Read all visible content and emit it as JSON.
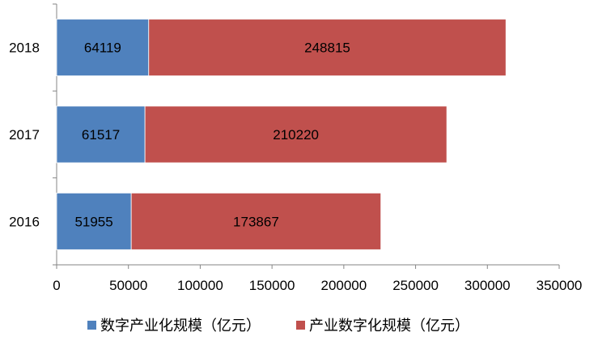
{
  "chart_data": {
    "type": "bar",
    "orientation": "horizontal",
    "stacked": true,
    "categories": [
      "2016",
      "2017",
      "2018"
    ],
    "series": [
      {
        "name": "数字产业化规模（亿元）",
        "values": [
          51955,
          61517,
          64119
        ],
        "color": "#4F81BD"
      },
      {
        "name": "产业数字化规模（亿元）",
        "values": [
          173867,
          210220,
          248815
        ],
        "color": "#C0504D"
      }
    ],
    "xlim": [
      0,
      350000
    ],
    "xticks": [
      "0",
      "50000",
      "100000",
      "150000",
      "200000",
      "250000",
      "300000",
      "350000"
    ],
    "grid": false,
    "legend_position": "bottom"
  }
}
